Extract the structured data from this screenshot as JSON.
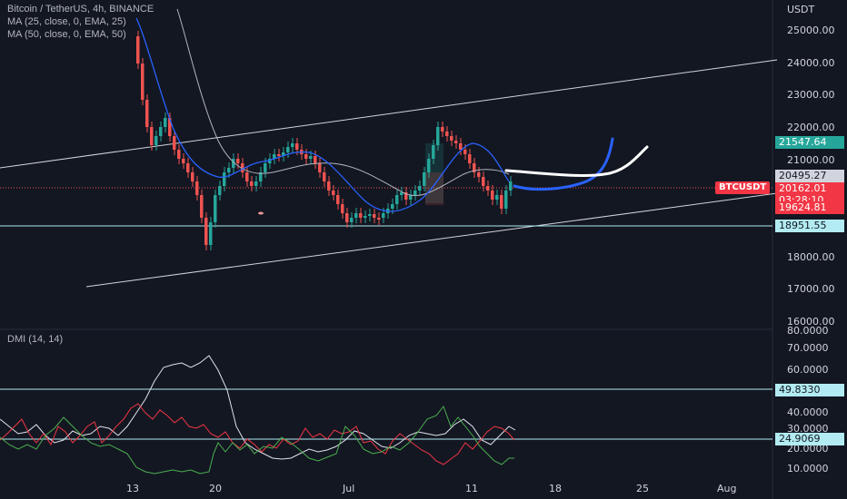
{
  "legend": {
    "symbol_line": "Bitcoin / TetherUS, 4h, BINANCE",
    "ma25_line": "MA (25, close, 0, EMA, 25)",
    "ma50_line": "MA (50, close, 0, EMA, 50)",
    "dmi_line": "DMI (14, 14)"
  },
  "price_axis": {
    "currency": "USDT",
    "ticks": [
      "25000.00",
      "24000.00",
      "23000.00",
      "22000.00",
      "21000.00",
      "18000.00",
      "17000.00",
      "16000.00"
    ]
  },
  "dmi_axis": {
    "ticks": [
      "80.0000",
      "70.0000",
      "60.0000",
      "40.0000",
      "30.0000",
      "20.0000",
      "10.0000"
    ]
  },
  "price_tags": {
    "green": "21547.64",
    "white": "20495.27",
    "symbol": "BTCUSDT",
    "current": "20162.01",
    "countdown": "03:28:10",
    "low": "19624.81",
    "line": "18951.55"
  },
  "dmi_tags": {
    "upper": "49.8330",
    "lower": "24.9069"
  },
  "dates": [
    "13",
    "20",
    "Jul",
    "11",
    "18",
    "25",
    "Aug"
  ],
  "colors": {
    "background": "#131722",
    "bull": "#26a69a",
    "bear": "#ef5350",
    "ma25": "#2962ff",
    "ma50": "#b2b5be",
    "plus_di": "#4caf50",
    "minus_di": "#f23645",
    "adx": "#e0e3eb"
  }
}
